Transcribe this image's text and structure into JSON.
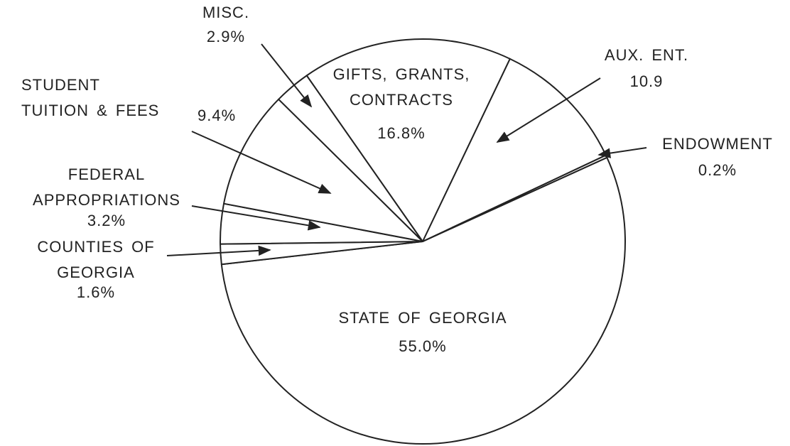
{
  "chart_data": {
    "type": "pie",
    "categories": [
      "STATE OF GEORGIA",
      "COUNTIES OF GEORGIA",
      "FEDERAL APPROPRIATIONS",
      "STUDENT TUITION & FEES",
      "MISC.",
      "GIFTS, GRANTS, CONTRACTS",
      "AUX. ENT.",
      "ENDOWMENT"
    ],
    "values": [
      55.0,
      1.6,
      3.2,
      9.4,
      2.9,
      16.8,
      10.9,
      0.2
    ],
    "value_labels": [
      "55.0%",
      "1.6%",
      "3.2%",
      "9.4%",
      "2.9%",
      "16.8%",
      "10.9",
      "0.2%"
    ],
    "color": "#ffffff",
    "edge_color": "#222222"
  }
}
